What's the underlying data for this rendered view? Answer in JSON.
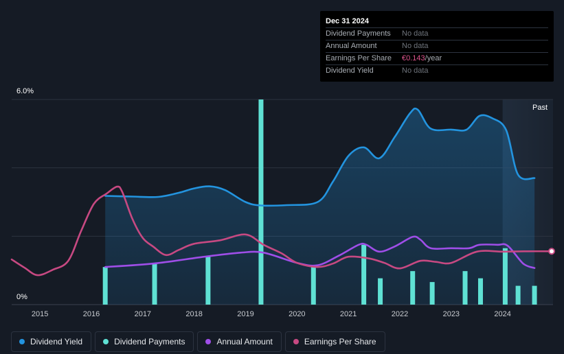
{
  "tooltip": {
    "date": "Dec 31 2024",
    "rows": [
      {
        "label": "Dividend Payments",
        "value": "No data"
      },
      {
        "label": "Annual Amount",
        "value": "No data"
      },
      {
        "label": "Earnings Per Share",
        "value": "€0.143",
        "unit": "/year"
      },
      {
        "label": "Dividend Yield",
        "value": "No data"
      }
    ]
  },
  "colors": {
    "background": "#151b25",
    "dividend_yield": "#2394df",
    "dividend_payments": "#5fe1d4",
    "annual_amount": "#9f4ee8",
    "eps": "#c74982",
    "grid": "#2c3340"
  },
  "chart_data": {
    "type": "line",
    "title": "",
    "xlabel": "",
    "ylabel": "",
    "ylim": [
      0,
      6.0
    ],
    "xlim": [
      2014.45,
      2024.98
    ],
    "y_labels": [
      "6.0%",
      "0%"
    ],
    "x_ticks": [
      {
        "value": 2015,
        "label": "2015"
      },
      {
        "value": 2016,
        "label": "2016"
      },
      {
        "value": 2017,
        "label": "2017"
      },
      {
        "value": 2018,
        "label": "2018"
      },
      {
        "value": 2019,
        "label": "2019"
      },
      {
        "value": 2020,
        "label": "2020"
      },
      {
        "value": 2021,
        "label": "2021"
      },
      {
        "value": 2022,
        "label": "2022"
      },
      {
        "value": 2023,
        "label": "2023"
      },
      {
        "value": 2024,
        "label": "2024"
      }
    ],
    "gridlines": [
      2.0,
      4.0,
      6.0
    ],
    "past_region": {
      "from": 2024.0,
      "to": 2024.98,
      "label": "Past"
    },
    "series": [
      {
        "name": "Dividend Yield",
        "kind": "line",
        "fill": true,
        "points": [
          [
            2016.27,
            3.18
          ],
          [
            2016.8,
            3.16
          ],
          [
            2017.3,
            3.15
          ],
          [
            2017.7,
            3.27
          ],
          [
            2018.0,
            3.4
          ],
          [
            2018.3,
            3.46
          ],
          [
            2018.6,
            3.35
          ],
          [
            2019.0,
            3.0
          ],
          [
            2019.3,
            2.9
          ],
          [
            2019.8,
            2.91
          ],
          [
            2020.4,
            3.0
          ],
          [
            2020.7,
            3.6
          ],
          [
            2021.0,
            4.35
          ],
          [
            2021.3,
            4.6
          ],
          [
            2021.6,
            4.28
          ],
          [
            2021.9,
            4.9
          ],
          [
            2022.2,
            5.6
          ],
          [
            2022.35,
            5.7
          ],
          [
            2022.6,
            5.15
          ],
          [
            2023.0,
            5.12
          ],
          [
            2023.3,
            5.12
          ],
          [
            2023.55,
            5.52
          ],
          [
            2023.8,
            5.45
          ],
          [
            2024.07,
            5.1
          ],
          [
            2024.3,
            3.8
          ],
          [
            2024.62,
            3.7
          ]
        ]
      },
      {
        "name": "Dividend Payments",
        "kind": "bar",
        "values": [
          [
            2016.27,
            1.1
          ],
          [
            2017.23,
            1.2
          ],
          [
            2018.27,
            1.4
          ],
          [
            2019.3,
            6.0
          ],
          [
            2020.32,
            1.1
          ],
          [
            2021.3,
            1.75
          ],
          [
            2021.62,
            0.77
          ],
          [
            2022.25,
            0.98
          ],
          [
            2022.63,
            0.66
          ],
          [
            2023.27,
            0.98
          ],
          [
            2023.57,
            0.77
          ],
          [
            2024.05,
            1.65
          ],
          [
            2024.3,
            0.55
          ],
          [
            2024.62,
            0.55
          ]
        ]
      },
      {
        "name": "Annual Amount",
        "kind": "line",
        "points": [
          [
            2016.27,
            1.1
          ],
          [
            2017.2,
            1.2
          ],
          [
            2018.2,
            1.4
          ],
          [
            2018.9,
            1.52
          ],
          [
            2019.35,
            1.52
          ],
          [
            2020.0,
            1.22
          ],
          [
            2020.4,
            1.15
          ],
          [
            2020.8,
            1.42
          ],
          [
            2021.2,
            1.75
          ],
          [
            2021.35,
            1.75
          ],
          [
            2021.6,
            1.55
          ],
          [
            2021.9,
            1.7
          ],
          [
            2022.25,
            1.98
          ],
          [
            2022.4,
            1.9
          ],
          [
            2022.6,
            1.65
          ],
          [
            2023.0,
            1.65
          ],
          [
            2023.35,
            1.65
          ],
          [
            2023.55,
            1.75
          ],
          [
            2023.9,
            1.75
          ],
          [
            2024.1,
            1.72
          ],
          [
            2024.4,
            1.2
          ],
          [
            2024.62,
            1.07
          ]
        ]
      },
      {
        "name": "Earnings Per Share",
        "kind": "line",
        "points": [
          [
            2014.45,
            1.32
          ],
          [
            2014.7,
            1.08
          ],
          [
            2014.95,
            0.86
          ],
          [
            2015.25,
            1.02
          ],
          [
            2015.55,
            1.28
          ],
          [
            2015.8,
            2.15
          ],
          [
            2016.05,
            2.95
          ],
          [
            2016.3,
            3.25
          ],
          [
            2016.5,
            3.45
          ],
          [
            2016.6,
            3.3
          ],
          [
            2016.8,
            2.5
          ],
          [
            2017.0,
            1.95
          ],
          [
            2017.2,
            1.7
          ],
          [
            2017.45,
            1.45
          ],
          [
            2017.7,
            1.6
          ],
          [
            2018.0,
            1.78
          ],
          [
            2018.5,
            1.88
          ],
          [
            2019.0,
            2.05
          ],
          [
            2019.35,
            1.75
          ],
          [
            2019.7,
            1.5
          ],
          [
            2020.0,
            1.22
          ],
          [
            2020.4,
            1.1
          ],
          [
            2020.7,
            1.2
          ],
          [
            2021.0,
            1.4
          ],
          [
            2021.4,
            1.35
          ],
          [
            2021.7,
            1.22
          ],
          [
            2022.0,
            1.06
          ],
          [
            2022.4,
            1.28
          ],
          [
            2022.7,
            1.25
          ],
          [
            2023.0,
            1.22
          ],
          [
            2023.5,
            1.55
          ],
          [
            2024.0,
            1.55
          ],
          [
            2024.5,
            1.56
          ],
          [
            2024.98,
            1.56
          ]
        ]
      }
    ],
    "legend": [
      {
        "label": "Dividend Yield",
        "color": "#2394df"
      },
      {
        "label": "Dividend Payments",
        "color": "#5fe1d4"
      },
      {
        "label": "Annual Amount",
        "color": "#9f4ee8"
      },
      {
        "label": "Earnings Per Share",
        "color": "#c74982"
      }
    ]
  }
}
